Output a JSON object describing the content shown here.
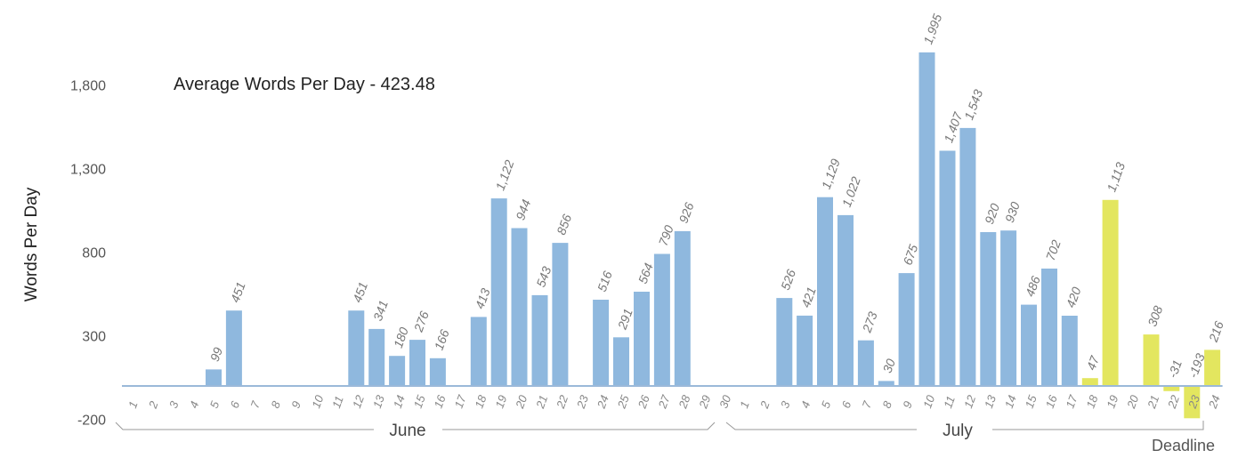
{
  "chart_data": {
    "type": "bar",
    "title": "Average Words Per Day - 423.48",
    "ylabel": "Words Per Day",
    "xlabel": "",
    "ylim": [
      -200,
      2000
    ],
    "yticks": [
      -200,
      300,
      800,
      1300,
      1800
    ],
    "ytick_labels": [
      "-200",
      "300",
      "800",
      "1,300",
      "1,800"
    ],
    "grid": false,
    "months": [
      {
        "name": "June",
        "days": [
          "1",
          "2",
          "3",
          "4",
          "5",
          "6",
          "7",
          "8",
          "9",
          "10",
          "11",
          "12",
          "13",
          "14",
          "15",
          "16",
          "17",
          "18",
          "19",
          "20",
          "21",
          "22",
          "23",
          "24",
          "25",
          "26",
          "27",
          "28",
          "29",
          "30"
        ]
      },
      {
        "name": "July",
        "days": [
          "1",
          "2",
          "3",
          "4",
          "5",
          "6",
          "7",
          "8",
          "9",
          "10",
          "11",
          "12",
          "13",
          "14",
          "15",
          "16",
          "17",
          "18",
          "19",
          "20",
          "21",
          "22",
          "23",
          "24"
        ]
      }
    ],
    "deadline_label": "Deadline",
    "colors": {
      "past": "#8fb8de",
      "recent": "#e3e65f",
      "axis": "#9bb9d9"
    },
    "series": [
      {
        "values": [
          0,
          0,
          0,
          0,
          99,
          451,
          0,
          0,
          0,
          0,
          0,
          451,
          341,
          180,
          276,
          166,
          0,
          413,
          1122,
          944,
          543,
          856,
          0,
          516,
          291,
          564,
          790,
          926,
          0,
          0,
          0,
          0,
          526,
          421,
          1129,
          1022,
          273,
          30,
          675,
          1995,
          1407,
          1543,
          920,
          930,
          486,
          702,
          420,
          47,
          1113,
          0,
          308,
          -31,
          -193,
          216
        ],
        "labels": [
          "",
          "",
          "",
          "",
          "99",
          "451",
          "",
          "",
          "",
          "",
          "",
          "451",
          "341",
          "180",
          "276",
          "166",
          "",
          "413",
          "1,122",
          "944",
          "543",
          "856",
          "",
          "516",
          "291",
          "564",
          "790",
          "926",
          "",
          "",
          "",
          "",
          "526",
          "421",
          "1,129",
          "1,022",
          "273",
          "30",
          "675",
          "1,995",
          "1,407",
          "1,543",
          "920",
          "930",
          "486",
          "702",
          "420",
          "47",
          "1,113",
          "",
          "308",
          "-31",
          "-193",
          "216"
        ],
        "highlight_from_index": 47
      }
    ]
  }
}
